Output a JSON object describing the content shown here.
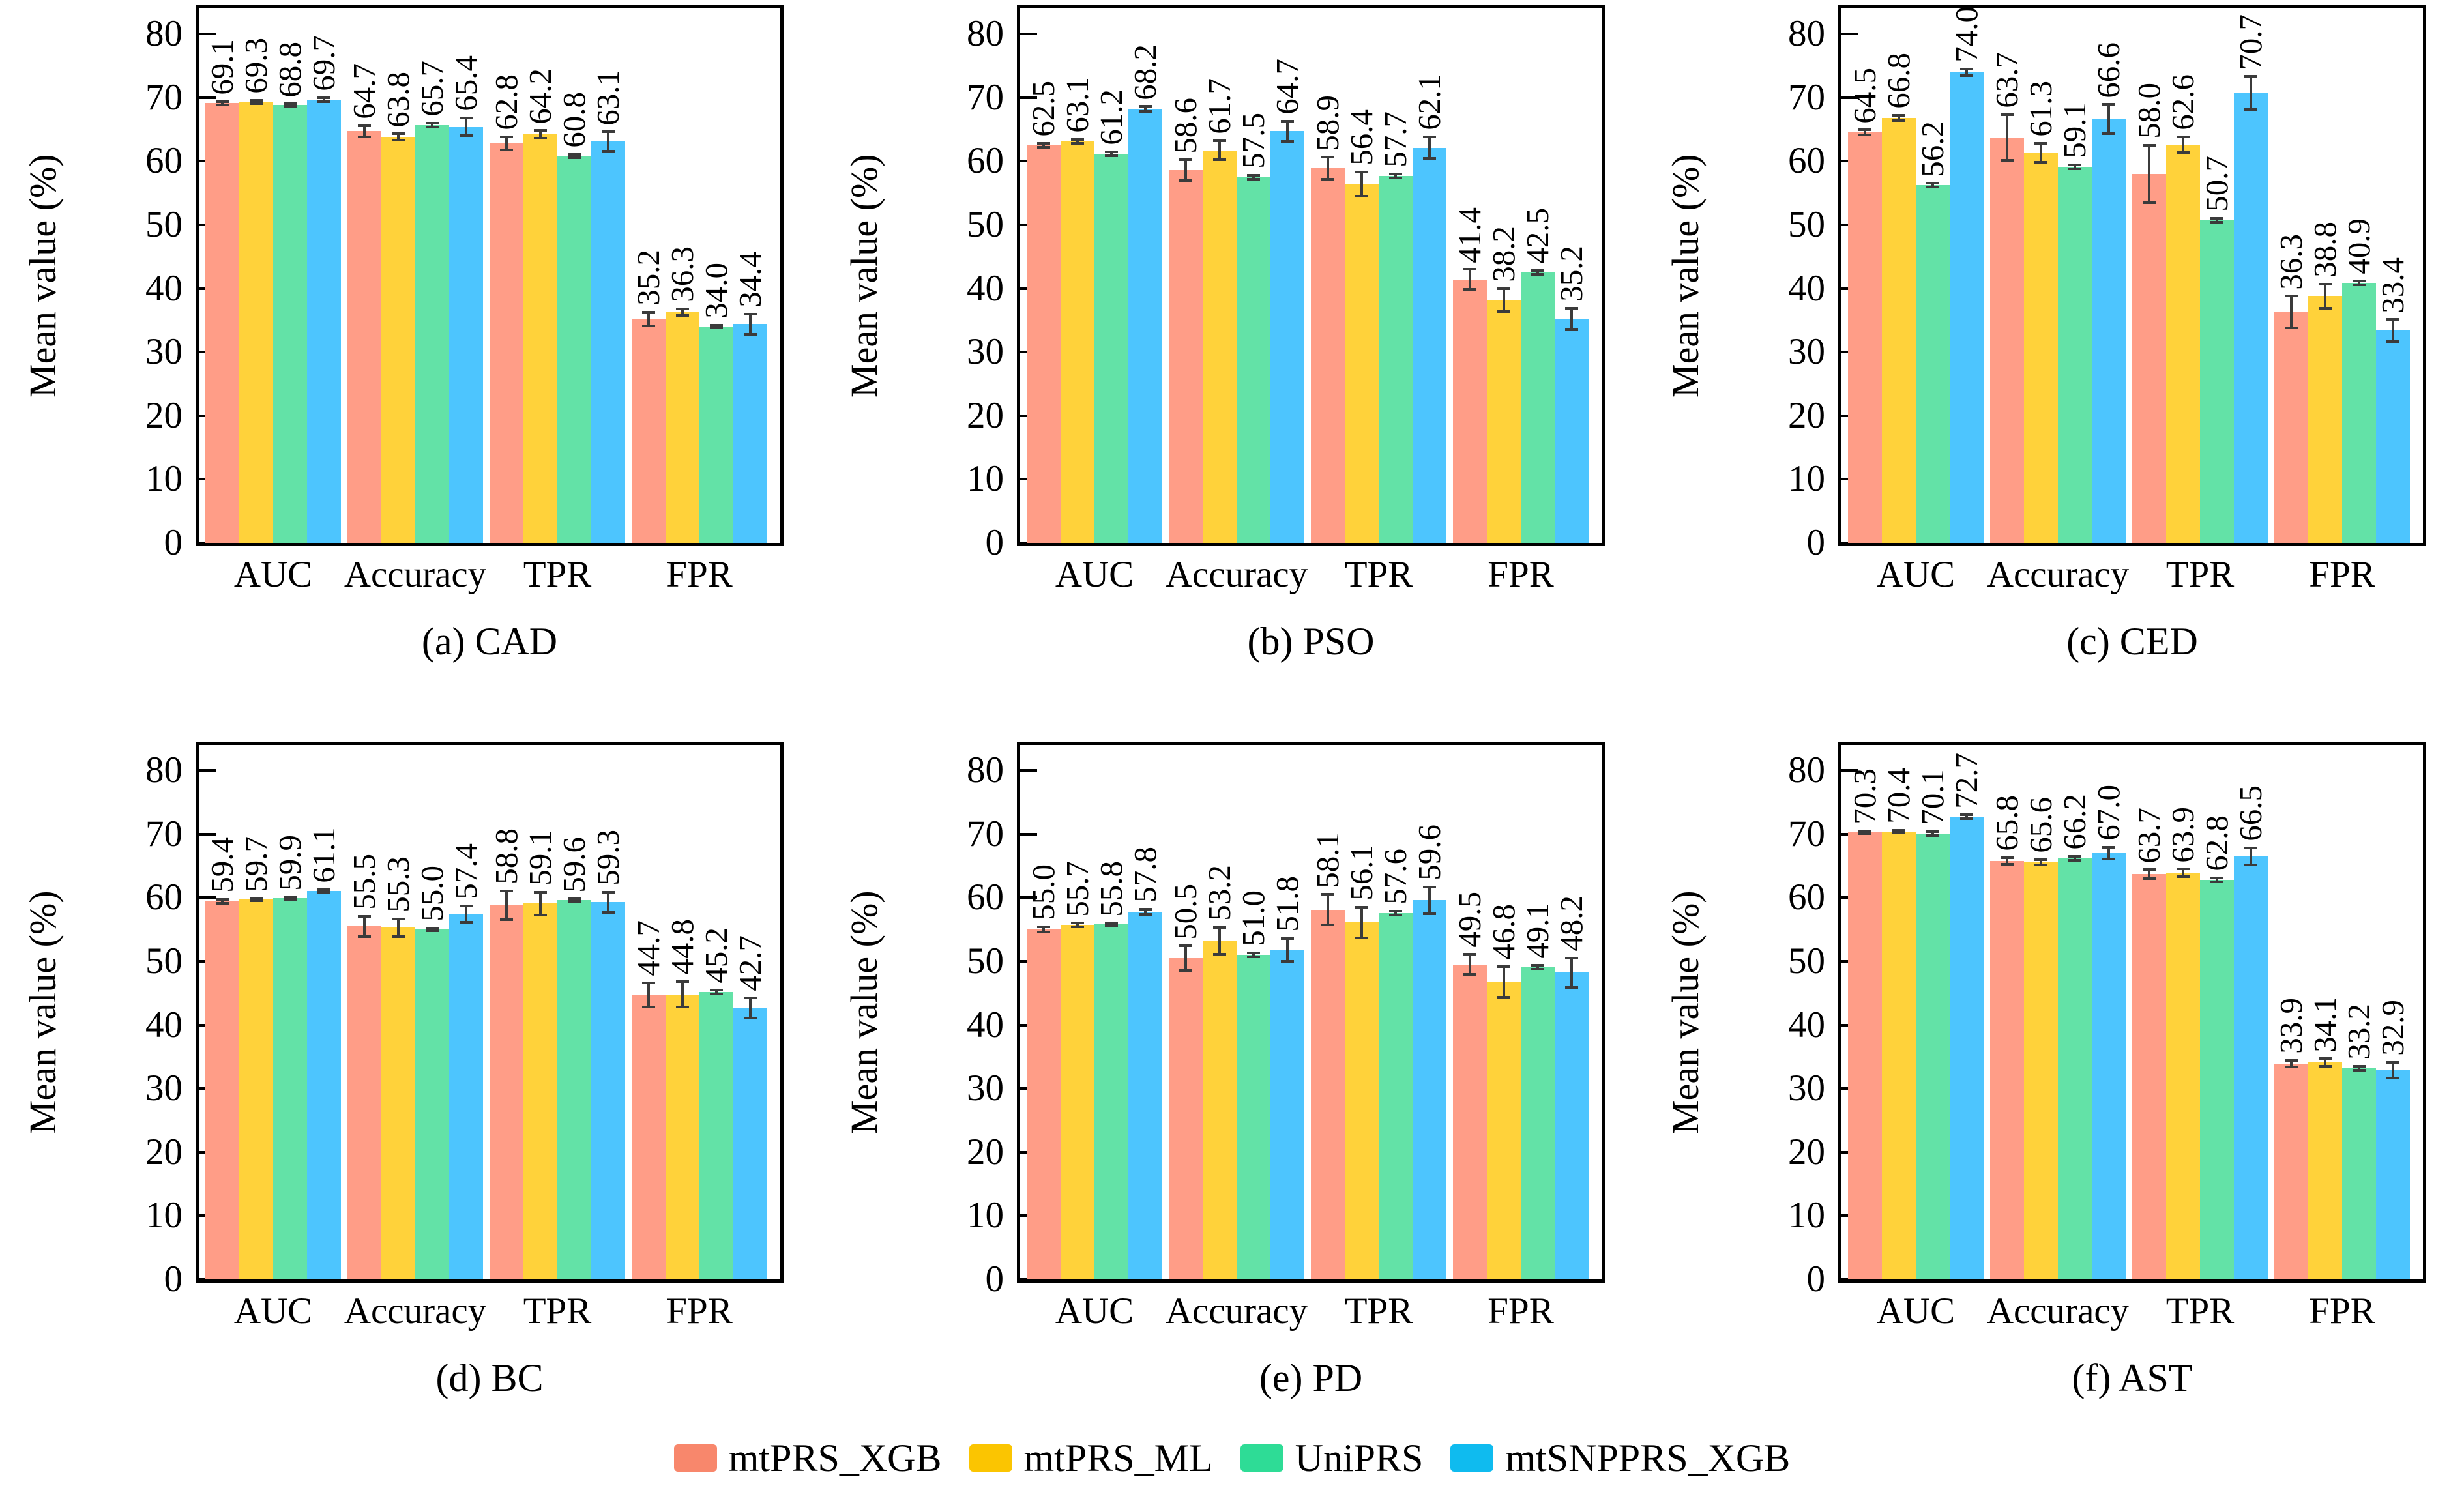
{
  "chart_data": [
    {
      "type": "bar",
      "title": "(a) CAD",
      "ylabel": "Mean value (%)",
      "ylim": [
        0,
        84
      ],
      "yticks": [
        0,
        10,
        20,
        30,
        40,
        50,
        60,
        70,
        80
      ],
      "categories": [
        "AUC",
        "Accuracy",
        "TPR",
        "FPR"
      ],
      "grid": false,
      "series": [
        {
          "name": "mtPRS_XGB",
          "values": [
            69.1,
            64.7,
            62.8,
            35.2
          ],
          "errors": [
            0.3,
            0.9,
            1.0,
            1.1
          ]
        },
        {
          "name": "mtPRS_ML",
          "values": [
            69.3,
            63.8,
            64.2,
            36.3
          ],
          "errors": [
            0.3,
            0.5,
            0.6,
            0.5
          ]
        },
        {
          "name": "UniPRS",
          "values": [
            68.8,
            65.7,
            60.8,
            34.0
          ],
          "errors": [
            0.2,
            0.3,
            0.3,
            0.2
          ]
        },
        {
          "name": "mtSNPPRS_XGB",
          "values": [
            69.7,
            65.4,
            63.1,
            34.4
          ],
          "errors": [
            0.3,
            1.4,
            1.5,
            1.6
          ]
        }
      ]
    },
    {
      "type": "bar",
      "title": "(b) PSO",
      "ylabel": "Mean value (%)",
      "ylim": [
        0,
        84
      ],
      "yticks": [
        0,
        10,
        20,
        30,
        40,
        50,
        60,
        70,
        80
      ],
      "categories": [
        "AUC",
        "Accuracy",
        "TPR",
        "FPR"
      ],
      "grid": false,
      "series": [
        {
          "name": "mtPRS_XGB",
          "values": [
            62.5,
            58.6,
            58.9,
            41.4
          ],
          "errors": [
            0.3,
            1.6,
            1.7,
            1.6
          ]
        },
        {
          "name": "mtPRS_ML",
          "values": [
            63.1,
            61.7,
            56.4,
            38.2
          ],
          "errors": [
            0.3,
            1.5,
            1.9,
            1.8
          ]
        },
        {
          "name": "UniPRS",
          "values": [
            61.2,
            57.5,
            57.7,
            42.5
          ],
          "errors": [
            0.3,
            0.3,
            0.3,
            0.3
          ]
        },
        {
          "name": "mtSNPPRS_XGB",
          "values": [
            68.2,
            64.7,
            62.1,
            35.2
          ],
          "errors": [
            0.4,
            1.6,
            1.7,
            1.7
          ]
        }
      ]
    },
    {
      "type": "bar",
      "title": "(c) CED",
      "ylabel": "Mean value (%)",
      "ylim": [
        0,
        84
      ],
      "yticks": [
        0,
        10,
        20,
        30,
        40,
        50,
        60,
        70,
        80
      ],
      "categories": [
        "AUC",
        "Accuracy",
        "TPR",
        "FPR"
      ],
      "grid": false,
      "series": [
        {
          "name": "mtPRS_XGB",
          "values": [
            64.5,
            63.7,
            58.0,
            36.3
          ],
          "errors": [
            0.4,
            3.6,
            4.5,
            2.5
          ]
        },
        {
          "name": "mtPRS_ML",
          "values": [
            66.8,
            61.3,
            62.6,
            38.8
          ],
          "errors": [
            0.4,
            1.5,
            1.2,
            1.9
          ]
        },
        {
          "name": "UniPRS",
          "values": [
            56.2,
            59.1,
            50.7,
            40.9
          ],
          "errors": [
            0.3,
            0.3,
            0.3,
            0.3
          ]
        },
        {
          "name": "mtSNPPRS_XGB",
          "values": [
            74.0,
            66.6,
            70.7,
            33.4
          ],
          "errors": [
            0.5,
            2.3,
            2.6,
            1.7
          ]
        }
      ]
    },
    {
      "type": "bar",
      "title": "(d) BC",
      "ylabel": "Mean value (%)",
      "ylim": [
        0,
        84
      ],
      "yticks": [
        0,
        10,
        20,
        30,
        40,
        50,
        60,
        70,
        80
      ],
      "categories": [
        "AUC",
        "Accuracy",
        "TPR",
        "FPR"
      ],
      "grid": false,
      "series": [
        {
          "name": "mtPRS_XGB",
          "values": [
            59.4,
            55.5,
            58.8,
            44.7
          ],
          "errors": [
            0.3,
            1.6,
            2.3,
            1.9
          ]
        },
        {
          "name": "mtPRS_ML",
          "values": [
            59.7,
            55.3,
            59.1,
            44.8
          ],
          "errors": [
            0.2,
            1.4,
            1.8,
            2.0
          ]
        },
        {
          "name": "UniPRS",
          "values": [
            59.9,
            55.0,
            59.6,
            45.2
          ],
          "errors": [
            0.2,
            0.2,
            0.2,
            0.3
          ]
        },
        {
          "name": "mtSNPPRS_XGB",
          "values": [
            61.1,
            57.4,
            59.3,
            42.7
          ],
          "errors": [
            0.2,
            1.3,
            1.6,
            1.6
          ]
        }
      ]
    },
    {
      "type": "bar",
      "title": "(e) PD",
      "ylabel": "Mean value (%)",
      "ylim": [
        0,
        84
      ],
      "yticks": [
        0,
        10,
        20,
        30,
        40,
        50,
        60,
        70,
        80
      ],
      "categories": [
        "AUC",
        "Accuracy",
        "TPR",
        "FPR"
      ],
      "grid": false,
      "series": [
        {
          "name": "mtPRS_XGB",
          "values": [
            55.0,
            50.5,
            58.1,
            49.5
          ],
          "errors": [
            0.4,
            1.9,
            2.4,
            1.6
          ]
        },
        {
          "name": "mtPRS_ML",
          "values": [
            55.7,
            53.2,
            56.1,
            46.8
          ],
          "errors": [
            0.3,
            2.1,
            2.4,
            2.4
          ]
        },
        {
          "name": "UniPRS",
          "values": [
            55.8,
            51.0,
            57.6,
            49.1
          ],
          "errors": [
            0.2,
            0.3,
            0.3,
            0.3
          ]
        },
        {
          "name": "mtSNPPRS_XGB",
          "values": [
            57.8,
            51.8,
            59.6,
            48.2
          ],
          "errors": [
            0.4,
            1.8,
            2.1,
            2.3
          ]
        }
      ]
    },
    {
      "type": "bar",
      "title": "(f) AST",
      "ylabel": "Mean value (%)",
      "ylim": [
        0,
        84
      ],
      "yticks": [
        0,
        10,
        20,
        30,
        40,
        50,
        60,
        70,
        80
      ],
      "categories": [
        "AUC",
        "Accuracy",
        "TPR",
        "FPR"
      ],
      "grid": false,
      "series": [
        {
          "name": "mtPRS_XGB",
          "values": [
            70.3,
            65.8,
            63.7,
            33.9
          ],
          "errors": [
            0.2,
            0.5,
            0.7,
            0.5
          ]
        },
        {
          "name": "mtPRS_ML",
          "values": [
            70.4,
            65.6,
            63.9,
            34.1
          ],
          "errors": [
            0.2,
            0.4,
            0.6,
            0.6
          ]
        },
        {
          "name": "UniPRS",
          "values": [
            70.1,
            66.2,
            62.8,
            33.2
          ],
          "errors": [
            0.3,
            0.3,
            0.3,
            0.3
          ]
        },
        {
          "name": "mtSNPPRS_XGB",
          "values": [
            72.7,
            67.0,
            66.5,
            32.9
          ],
          "errors": [
            0.3,
            0.9,
            1.3,
            1.2
          ]
        }
      ]
    }
  ],
  "legend": {
    "position": "bottom-center",
    "items": [
      {
        "label": "mtPRS_XGB",
        "color": "#F8876C",
        "bar_color": "#FF9D87"
      },
      {
        "label": "mtPRS_ML",
        "color": "#FBC501",
        "bar_color": "#FFD23A"
      },
      {
        "label": "UniPRS",
        "color": "#2EDC96",
        "bar_color": "#63E2A7"
      },
      {
        "label": "mtSNPPRS_XGB",
        "color": "#0FBBEF",
        "bar_color": "#4DC5FE"
      }
    ]
  },
  "style": {
    "axis_color": "#000000",
    "error_bar_color": "#3b3b3b",
    "background": "#ffffff"
  }
}
